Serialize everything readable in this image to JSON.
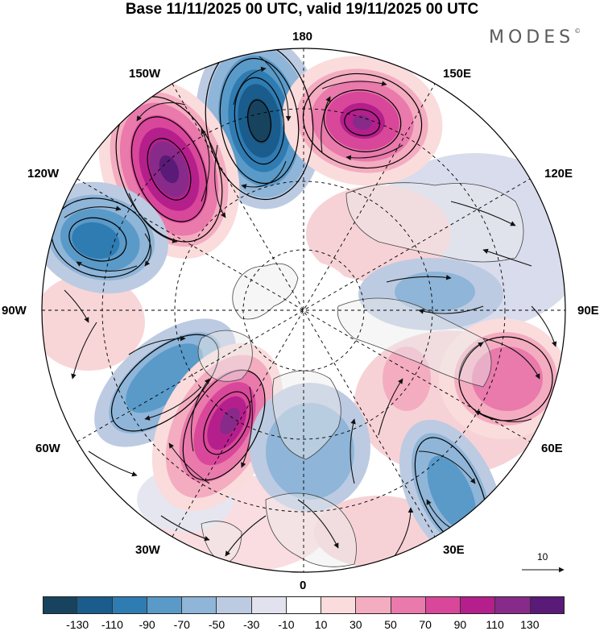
{
  "title": "Base 11/11/2025 00 UTC, valid 19/11/2025 00 UTC",
  "brand": "MODES",
  "brand_mark": "©",
  "longitude_labels": {
    "north": "180",
    "nw150": "150W",
    "ne150": "150E",
    "w120": "120W",
    "e120": "120E",
    "w90": "90W",
    "e90": "90E",
    "w60": "60W",
    "e60": "60E",
    "w30": "30W",
    "e30": "30E",
    "south": "0"
  },
  "reference_vector": {
    "label": "10",
    "magnitude": 10
  },
  "colorbar": {
    "levels": [
      "-130",
      "-110",
      "-90",
      "-70",
      "-50",
      "-30",
      "-10",
      "10",
      "30",
      "50",
      "70",
      "90",
      "110",
      "130"
    ],
    "colors": [
      "#17435f",
      "#1a5d8c",
      "#2f7cb3",
      "#5a9ac8",
      "#8fb5d8",
      "#bccbe2",
      "#e2e2ee",
      "#ffffff",
      "#fadcdc",
      "#f4acc0",
      "#e97aab",
      "#d9479a",
      "#b51f8c",
      "#882a8a",
      "#5a1a78"
    ]
  },
  "anomaly_centers": [
    {
      "sign": "negative",
      "intensity": -130,
      "label_region": "near 180"
    },
    {
      "sign": "positive",
      "intensity": 110,
      "label_region": "150W"
    },
    {
      "sign": "positive",
      "intensity": 90,
      "label_region": "150E"
    },
    {
      "sign": "negative",
      "intensity": -90,
      "label_region": "120W"
    },
    {
      "sign": "negative",
      "intensity": -70,
      "label_region": "60W"
    },
    {
      "sign": "positive",
      "intensity": 110,
      "label_region": "30W-60W"
    },
    {
      "sign": "positive",
      "intensity": 70,
      "label_region": "60E-90E"
    },
    {
      "sign": "negative",
      "intensity": -70,
      "label_region": "30E"
    },
    {
      "sign": "negative",
      "intensity": -50,
      "label_region": "0"
    },
    {
      "sign": "negative",
      "intensity": -30,
      "label_region": "90E"
    }
  ]
}
